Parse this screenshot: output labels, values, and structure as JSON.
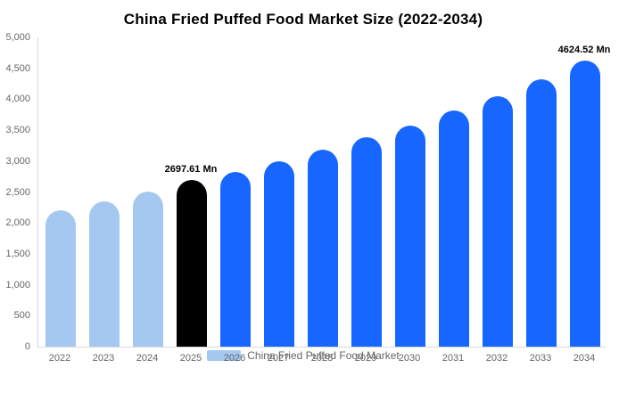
{
  "chart_data": {
    "type": "bar",
    "title": "China Fried Puffed Food Market Size (2022-2034)",
    "categories": [
      "2022",
      "2023",
      "2024",
      "2025",
      "2026",
      "2027",
      "2028",
      "2029",
      "2030",
      "2031",
      "2032",
      "2033",
      "2034"
    ],
    "values": [
      2200,
      2350,
      2500,
      2697.61,
      2830,
      3000,
      3180,
      3380,
      3580,
      3820,
      4050,
      4320,
      4624.52
    ],
    "bar_colors": [
      "#a5c8f0",
      "#a5c8f0",
      "#a5c8f0",
      "#000000",
      "#1666ff",
      "#1666ff",
      "#1666ff",
      "#1666ff",
      "#1666ff",
      "#1666ff",
      "#1666ff",
      "#1666ff",
      "#1666ff"
    ],
    "ylim": [
      0,
      5000
    ],
    "ytick_step": 500,
    "ytick_labels": [
      "0",
      "500",
      "1,000",
      "1,500",
      "2,000",
      "2,500",
      "3,000",
      "3,500",
      "4,000",
      "4,500",
      "5,000"
    ],
    "grid": false,
    "legend_position": "bottom",
    "annotations": [
      {
        "index": 3,
        "text": "2697.61 Mn"
      },
      {
        "index": 12,
        "text": "4624.52 Mn"
      }
    ],
    "legend": [
      {
        "label": "China Fried Puffed Food Market",
        "color": "#a5c8f0"
      }
    ]
  },
  "colors": {
    "light_blue": "#a5c8f0",
    "blue": "#1666ff",
    "black": "#000000",
    "axis": "#d9d9d9",
    "tick_text": "#666666"
  }
}
